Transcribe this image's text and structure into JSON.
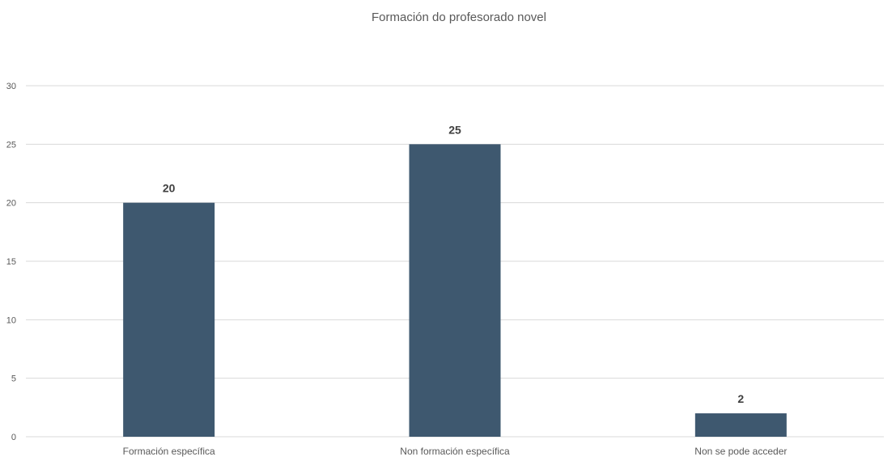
{
  "chart_data": {
    "type": "bar",
    "title": "Formación do profesorado novel",
    "categories": [
      "Formación específica",
      "Non formación específica",
      "Non se pode acceder"
    ],
    "values": [
      20,
      25,
      2
    ],
    "data_labels": [
      "20",
      "25",
      "2"
    ],
    "ylim": [
      0,
      30
    ],
    "yticks": [
      0,
      5,
      10,
      15,
      20,
      25,
      30
    ],
    "xlabel": "",
    "ylabel": "",
    "grid": true,
    "legend": "none",
    "colors": {
      "bar": "#3e586f",
      "grid": "#d9d9d9",
      "axis_text": "#595959",
      "title": "#595959",
      "data_label": "#404040"
    }
  }
}
